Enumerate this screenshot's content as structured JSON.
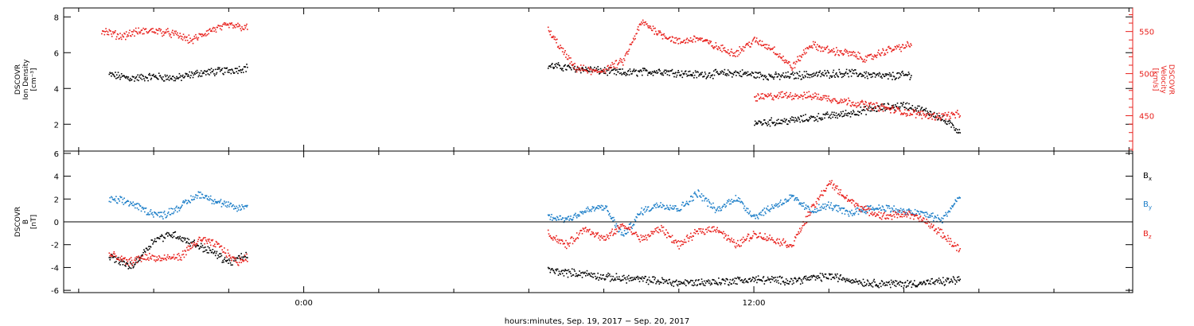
{
  "chart_data": [
    {
      "type": "scatter",
      "panel": "plasma",
      "left_axis": {
        "label_lines": [
          "DSCOVR",
          "Ion Density",
          "[cm⁻³]"
        ],
        "ylim": [
          0.5,
          8.5
        ],
        "ticks": [
          2,
          4,
          6,
          8
        ],
        "color": "#000000"
      },
      "right_axis": {
        "label_lines": [
          "DSCOVR",
          "Velocity",
          "[km/s]"
        ],
        "ylim": [
          408,
          578
        ],
        "ticks": [
          450,
          500,
          550
        ],
        "color": "#e8201c"
      },
      "series": [
        {
          "axis": "left",
          "color": "#000000",
          "segments": [
            {
              "x": [
                -5.2,
                -4.6,
                -4.0,
                -3.4,
                -2.8,
                -2.2,
                -1.8,
                -1.5
              ],
              "y": [
                4.8,
                4.6,
                4.7,
                4.6,
                4.9,
                5.0,
                5.1,
                5.2
              ]
            },
            {
              "x": [
                6.5,
                7.5,
                8.5,
                9.5,
                10.5,
                11.5,
                12.5,
                13.5,
                14.5,
                15.5,
                16.2
              ],
              "y": [
                5.3,
                5.1,
                4.9,
                5.0,
                4.8,
                4.9,
                4.7,
                4.8,
                4.9,
                4.7,
                4.8
              ]
            },
            {
              "x": [
                12.0,
                12.8,
                13.6,
                14.4,
                15.2,
                16.0,
                16.8,
                17.5
              ],
              "y": [
                2.1,
                2.2,
                2.4,
                2.6,
                2.9,
                3.1,
                2.6,
                1.6
              ]
            }
          ]
        },
        {
          "axis": "right",
          "color": "#e8201c",
          "segments": [
            {
              "x": [
                -5.4,
                -4.9,
                -4.5,
                -4.0,
                -3.5,
                -3.0,
                -2.5,
                -2.0,
                -1.5
              ],
              "y": [
                552,
                545,
                550,
                552,
                548,
                540,
                552,
                558,
                555
              ]
            },
            {
              "x": [
                6.5,
                7.2,
                7.8,
                8.5,
                9.0,
                9.5,
                10.0,
                10.5,
                11.0,
                11.5,
                12.0,
                12.5,
                13.0,
                13.5,
                14.0,
                14.5,
                15.0,
                15.5,
                16.2
              ],
              "y": [
                552,
                508,
                502,
                515,
                562,
                548,
                538,
                543,
                532,
                525,
                540,
                530,
                508,
                535,
                528,
                525,
                518,
                528,
                535
              ]
            },
            {
              "x": [
                12.0,
                12.8,
                13.6,
                14.4,
                15.2,
                16.0,
                16.8,
                17.5
              ],
              "y": [
                472,
                475,
                474,
                468,
                462,
                455,
                450,
                452
              ]
            }
          ]
        }
      ]
    },
    {
      "type": "scatter",
      "panel": "magnetic",
      "left_axis": {
        "label_lines": [
          "DSCOVR",
          "B",
          "[nT]"
        ],
        "ylim": [
          -6.2,
          6.2
        ],
        "ticks": [
          -6,
          -4,
          -2,
          0,
          2,
          4,
          6
        ],
        "color": "#000000"
      },
      "zero_line": true,
      "series": [
        {
          "name_main": "B",
          "name_sub": "x",
          "color": "#000000",
          "segments": [
            {
              "x": [
                -5.2,
                -4.6,
                -4.0,
                -3.5,
                -3.0,
                -2.5,
                -2.0,
                -1.5
              ],
              "y": [
                -3.0,
                -3.9,
                -1.5,
                -1.0,
                -1.8,
                -2.5,
                -3.5,
                -2.8
              ]
            },
            {
              "x": [
                6.5,
                7.0,
                7.5,
                8.0,
                9.0,
                10.0,
                11.0,
                12.0,
                13.0,
                14.0,
                15.0,
                16.0,
                17.0,
                17.5
              ],
              "y": [
                -4.2,
                -4.4,
                -4.5,
                -4.8,
                -5.0,
                -5.3,
                -5.2,
                -5.0,
                -5.1,
                -4.7,
                -5.3,
                -5.4,
                -5.2,
                -5.0
              ]
            }
          ]
        },
        {
          "name_main": "B",
          "name_sub": "y",
          "color": "#1c7ec8",
          "segments": [
            {
              "x": [
                -5.2,
                -4.7,
                -4.2,
                -3.8,
                -3.3,
                -2.8,
                -2.3,
                -1.8,
                -1.5
              ],
              "y": [
                2.0,
                1.8,
                1.0,
                0.6,
                1.4,
                2.5,
                1.8,
                1.2,
                1.5
              ]
            },
            {
              "x": [
                6.5,
                7.0,
                7.5,
                8.0,
                8.5,
                9.0,
                9.5,
                10.0,
                10.5,
                11.0,
                11.5,
                12.0,
                12.5,
                13.0,
                13.5,
                14.0,
                14.5,
                15.0,
                15.5,
                16.0,
                16.5,
                17.0,
                17.5
              ],
              "y": [
                0.5,
                0.3,
                1.0,
                1.4,
                -1.2,
                1.0,
                1.6,
                1.2,
                2.6,
                1.0,
                2.2,
                0.5,
                1.4,
                2.2,
                1.0,
                1.5,
                0.8,
                1.2,
                1.3,
                0.9,
                0.8,
                0.2,
                2.4
              ]
            }
          ]
        },
        {
          "name_main": "B",
          "name_sub": "z",
          "color": "#e8201c",
          "segments": [
            {
              "x": [
                -5.2,
                -4.7,
                -4.2,
                -3.8,
                -3.3,
                -2.8,
                -2.3,
                -1.8,
                -1.5
              ],
              "y": [
                -2.8,
                -3.5,
                -3.0,
                -3.2,
                -3.0,
                -1.5,
                -2.0,
                -3.5,
                -3.0
              ]
            },
            {
              "x": [
                6.5,
                7.0,
                7.5,
                8.0,
                8.5,
                9.0,
                9.5,
                10.0,
                10.5,
                11.0,
                11.5,
                12.0,
                12.5,
                13.0,
                13.5,
                14.0,
                14.5,
                15.0,
                15.5,
                16.0,
                16.5,
                17.0,
                17.5
              ],
              "y": [
                -1.0,
                -2.0,
                -0.5,
                -1.5,
                -0.2,
                -1.5,
                -0.5,
                -2.0,
                -0.8,
                -0.5,
                -2.0,
                -1.0,
                -1.5,
                -2.0,
                1.0,
                3.5,
                2.0,
                1.0,
                0.5,
                0.8,
                0.2,
                -1.0,
                -2.5
              ]
            }
          ]
        }
      ],
      "legend_placement": "right"
    }
  ],
  "x_axis": {
    "xlim": [
      -6.4,
      22.1
    ],
    "major_ticks": [
      0,
      12
    ],
    "major_tick_labels": [
      "0:00",
      "12:00"
    ],
    "minor_step_hours": 2,
    "caption": "hours:minutes, Sep. 19, 2017 − Sep. 20, 2017"
  }
}
